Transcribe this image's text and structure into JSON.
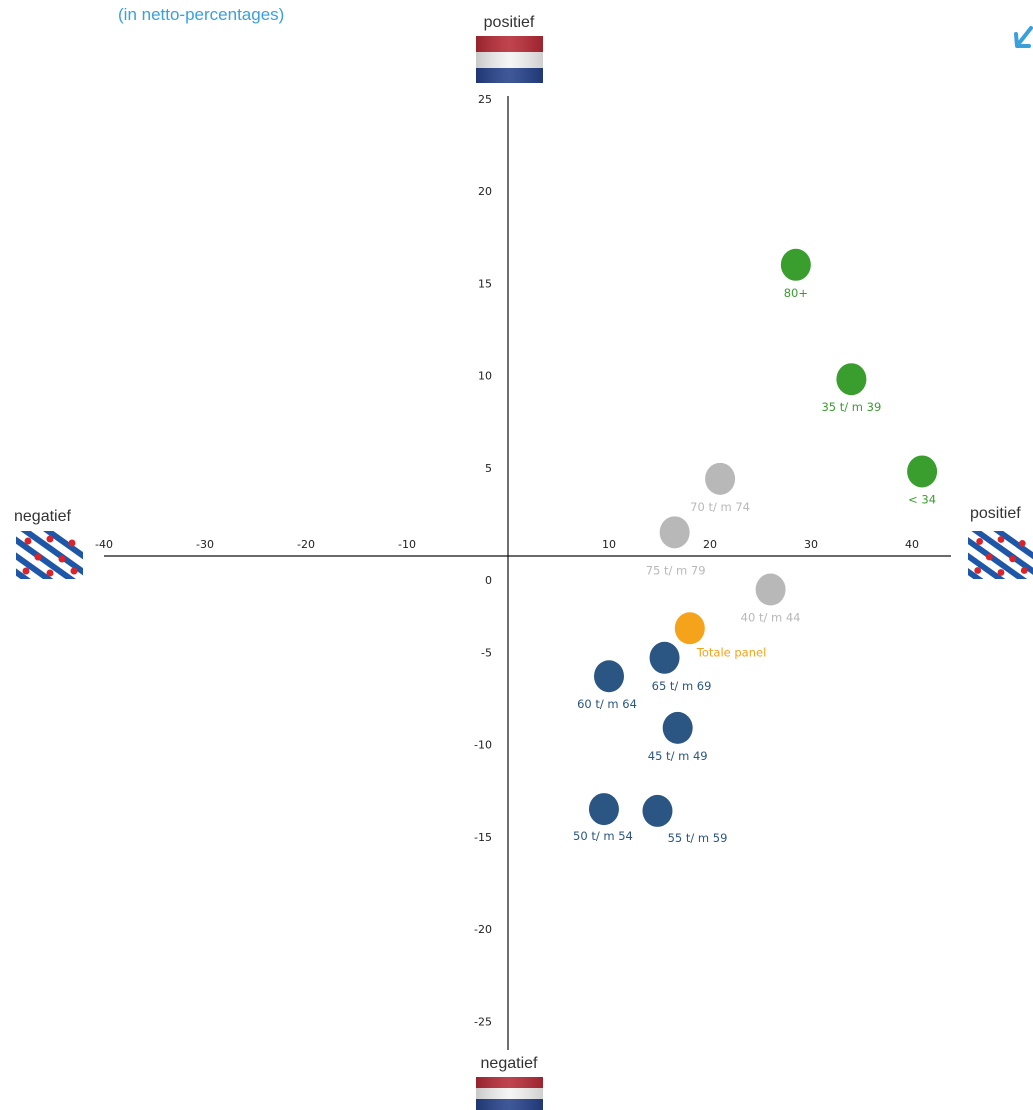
{
  "subtitle": "(in netto-percentages)",
  "poles": {
    "top": "positief",
    "bottom": "negatief",
    "left": "negatief",
    "right": "positief"
  },
  "colors": {
    "green": "#3a9e2e",
    "grey": "#b8b8b8",
    "blue": "#2b5583",
    "orange": "#f5a31a",
    "accent": "#3aa0dc",
    "axis": "#111111"
  },
  "chart_data": {
    "type": "scatter",
    "xlim": [
      -40,
      40
    ],
    "ylim": [
      -25,
      25
    ],
    "x_ticks": [
      "-40",
      "-30",
      "-20",
      "-10",
      "10",
      "20",
      "30",
      "40"
    ],
    "y_ticks": [
      "25",
      "20",
      "15",
      "10",
      "5",
      "0",
      "-5",
      "-10",
      "-15",
      "-20",
      "-25"
    ],
    "grid": false,
    "points": [
      {
        "label": "80+",
        "x": 28.5,
        "y": 16,
        "group": "green"
      },
      {
        "label": "35 t/ m 39",
        "x": 34,
        "y": 9.8,
        "group": "green"
      },
      {
        "label": "< 34",
        "x": 41,
        "y": 4.8,
        "group": "green"
      },
      {
        "label": "70 t/ m 74",
        "x": 21,
        "y": 4.4,
        "group": "grey"
      },
      {
        "label": "75 t/ m 79",
        "x": 16.5,
        "y": 1.5,
        "group": "grey"
      },
      {
        "label": "40 t/ m 44",
        "x": 26,
        "y": -1.6,
        "group": "grey"
      },
      {
        "label": "Totale panel",
        "x": 18,
        "y": -3.7,
        "group": "orange"
      },
      {
        "label": "65 t/ m 69",
        "x": 15.5,
        "y": -5.3,
        "group": "blue"
      },
      {
        "label": "60 t/ m 64",
        "x": 10,
        "y": -6.3,
        "group": "blue"
      },
      {
        "label": "45 t/ m 49",
        "x": 16.8,
        "y": -9.1,
        "group": "blue"
      },
      {
        "label": "50 t/ m 54",
        "x": 9.5,
        "y": -13.5,
        "group": "blue"
      },
      {
        "label": "55 t/ m 59",
        "x": 14.8,
        "y": -13.6,
        "group": "blue"
      }
    ]
  }
}
